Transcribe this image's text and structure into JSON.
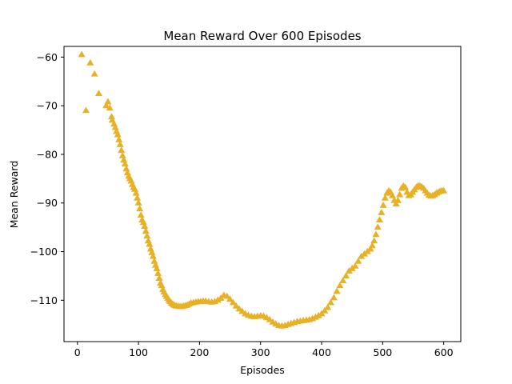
{
  "chart_data": {
    "type": "scatter",
    "title": "Mean Reward Over 600 Episodes",
    "xlabel": "Episodes",
    "ylabel": "Mean Reward",
    "xlim": [
      -22,
      628
    ],
    "ylim": [
      -118.5,
      -57.8
    ],
    "xticks": [
      0,
      100,
      200,
      300,
      400,
      500,
      600
    ],
    "yticks": [
      -110,
      -100,
      -90,
      -80,
      -70,
      -60
    ],
    "grid": false,
    "marker": "triangle-up",
    "color": "#e8b024",
    "series": [
      {
        "x": [
          7,
          14,
          21,
          28,
          35,
          47,
          50,
          53,
          56,
          57,
          60,
          62,
          64,
          66,
          68,
          70,
          72,
          74,
          76,
          78,
          80,
          82,
          84,
          86,
          88,
          90,
          92,
          94,
          96,
          98,
          100,
          102,
          104,
          106,
          108,
          110,
          112,
          114,
          116,
          118,
          120,
          122,
          124,
          126,
          128,
          130,
          132,
          134,
          136,
          138,
          140,
          142,
          144,
          146,
          148,
          150,
          152,
          154,
          156,
          158,
          160,
          162,
          165,
          168,
          171,
          174,
          177,
          180,
          183,
          186,
          190,
          194,
          198,
          202,
          206,
          210,
          215,
          220,
          225,
          230,
          235,
          240,
          245,
          250,
          255,
          260,
          265,
          270,
          275,
          280,
          285,
          290,
          295,
          300,
          305,
          310,
          315,
          320,
          325,
          330,
          335,
          340,
          345,
          350,
          355,
          360,
          365,
          370,
          375,
          380,
          385,
          390,
          395,
          400,
          405,
          410,
          415,
          420,
          425,
          430,
          435,
          440,
          445,
          450,
          455,
          460,
          465,
          470,
          475,
          480,
          483,
          486,
          489,
          492,
          495,
          498,
          501,
          504,
          507,
          510,
          513,
          516,
          519,
          522,
          525,
          528,
          531,
          534,
          537,
          540,
          543,
          546,
          549,
          552,
          555,
          558,
          561,
          564,
          567,
          570,
          573,
          576,
          579,
          582,
          585,
          588,
          591,
          594,
          597,
          600
        ],
        "y": [
          -59.5,
          -71.0,
          -61.2,
          -63.5,
          -67.5,
          -70.0,
          -69.2,
          -70.5,
          -72.3,
          -73.0,
          -73.8,
          -74.5,
          -75.3,
          -76.0,
          -77.0,
          -78.0,
          -79.2,
          -80.3,
          -81.2,
          -82.0,
          -83.0,
          -83.8,
          -84.5,
          -85.0,
          -85.5,
          -86.2,
          -86.8,
          -87.2,
          -88.0,
          -89.0,
          -90.0,
          -91.2,
          -92.5,
          -93.5,
          -94.0,
          -94.8,
          -95.8,
          -96.8,
          -97.8,
          -98.5,
          -99.5,
          -100.2,
          -101.0,
          -102.0,
          -102.8,
          -103.5,
          -104.5,
          -105.5,
          -106.5,
          -107.0,
          -107.8,
          -108.3,
          -108.8,
          -109.2,
          -109.6,
          -110.0,
          -110.3,
          -110.6,
          -110.8,
          -111.0,
          -111.1,
          -111.2,
          -111.2,
          -111.3,
          -111.3,
          -111.2,
          -111.1,
          -111.0,
          -110.8,
          -110.6,
          -110.5,
          -110.4,
          -110.3,
          -110.3,
          -110.2,
          -110.2,
          -110.3,
          -110.4,
          -110.3,
          -110.0,
          -109.6,
          -109.0,
          -109.2,
          -109.8,
          -110.5,
          -111.2,
          -111.8,
          -112.3,
          -112.8,
          -113.1,
          -113.3,
          -113.4,
          -113.3,
          -113.2,
          -113.3,
          -113.6,
          -114.0,
          -114.5,
          -114.9,
          -115.2,
          -115.3,
          -115.2,
          -115.0,
          -114.8,
          -114.6,
          -114.4,
          -114.3,
          -114.2,
          -114.1,
          -114.0,
          -113.8,
          -113.5,
          -113.2,
          -112.8,
          -112.2,
          -111.5,
          -110.5,
          -109.5,
          -108.2,
          -107.0,
          -106.0,
          -105.0,
          -104.0,
          -103.5,
          -103.0,
          -102.0,
          -101.0,
          -100.5,
          -100.0,
          -99.5,
          -98.8,
          -97.8,
          -96.5,
          -95.0,
          -93.5,
          -92.0,
          -90.5,
          -89.0,
          -88.0,
          -87.5,
          -87.8,
          -88.5,
          -89.5,
          -90.2,
          -89.5,
          -88.3,
          -87.0,
          -86.5,
          -86.8,
          -87.8,
          -88.5,
          -88.3,
          -87.8,
          -87.3,
          -86.8,
          -86.5,
          -86.5,
          -86.7,
          -87.0,
          -87.5,
          -88.0,
          -88.4,
          -88.6,
          -88.5,
          -88.3,
          -88.0,
          -87.8,
          -87.6,
          -87.5,
          -87.5
        ]
      }
    ]
  }
}
